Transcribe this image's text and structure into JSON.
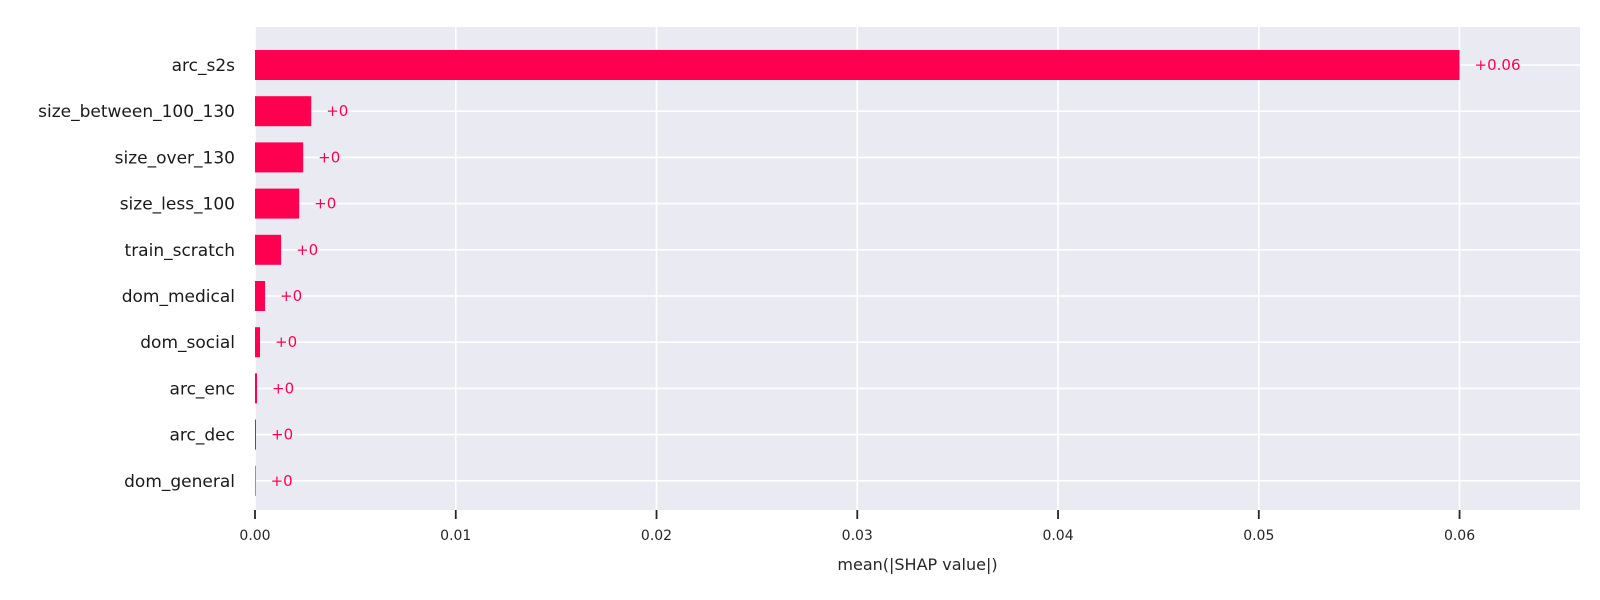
{
  "chart_data": {
    "type": "bar",
    "orientation": "horizontal",
    "title": "",
    "xlabel": "mean(|SHAP value|)",
    "ylabel": "",
    "xlim": [
      0,
      0.066
    ],
    "grid": true,
    "legend": "none",
    "colors": {
      "bar": "#ff0051",
      "background": "#eaeaf2",
      "grid": "#ffffff"
    },
    "categories": [
      "arc_s2s",
      "size_between_100_130",
      "size_over_130",
      "size_less_100",
      "train_scratch",
      "dom_medical",
      "dom_social",
      "arc_enc",
      "arc_dec",
      "dom_general"
    ],
    "values": [
      0.06,
      0.0028,
      0.0024,
      0.0022,
      0.0013,
      0.0005,
      0.00025,
      0.0001,
      5e-05,
      2e-05
    ],
    "value_labels": [
      "+0.06",
      "+0",
      "+0",
      "+0",
      "+0",
      "+0",
      "+0",
      "+0",
      "+0",
      "+0"
    ],
    "x_ticks": [
      0,
      0.01,
      0.02,
      0.03,
      0.04,
      0.05,
      0.06
    ],
    "x_tick_labels": [
      "0.00",
      "0.01",
      "0.02",
      "0.03",
      "0.04",
      "0.05",
      "0.06"
    ]
  }
}
